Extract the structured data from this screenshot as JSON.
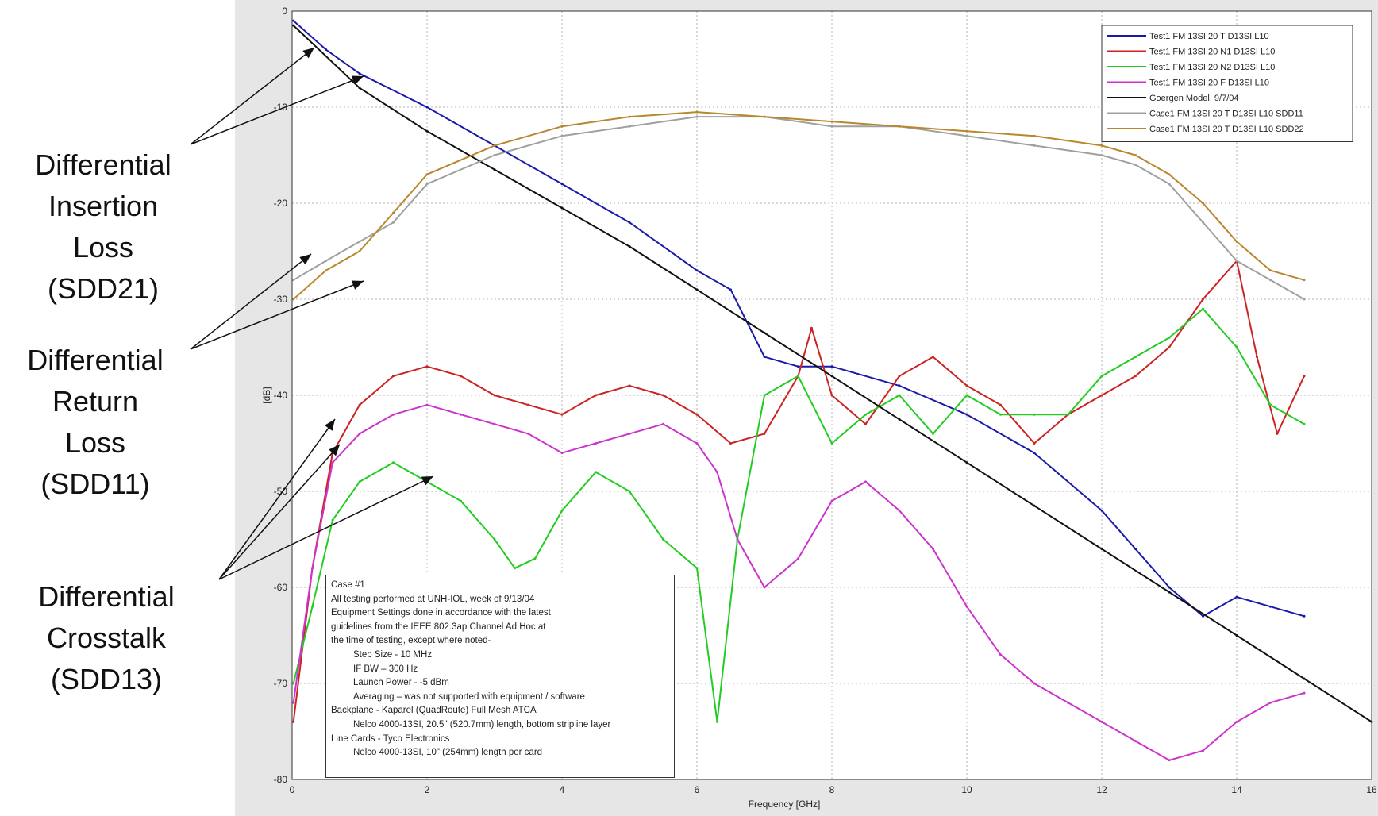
{
  "annotations": [
    {
      "label": "Differential\nInsertion\nLoss\n(SDD21)"
    },
    {
      "label": "Differential\nReturn\nLoss\n(SDD11)"
    },
    {
      "label": "Differential\nCrosstalk\n(SDD13)"
    }
  ],
  "notes": {
    "title": "Case #1",
    "lines": [
      {
        "text": "All testing performed at UNH-IOL, week of 9/13/04",
        "indent": false
      },
      {
        "text": "Equipment Settings done in accordance with the latest",
        "indent": false
      },
      {
        "text": "guidelines from the IEEE 802.3ap Channel Ad Hoc at",
        "indent": false
      },
      {
        "text": "the time of testing, except where noted-",
        "indent": false
      },
      {
        "text": "Step Size - 10 MHz",
        "indent": true
      },
      {
        "text": "IF BW – 300 Hz",
        "indent": true
      },
      {
        "text": "Launch Power - -5 dBm",
        "indent": true
      },
      {
        "text": "Averaging – was not supported with equipment / software",
        "indent": true
      },
      {
        "text": "Backplane - Kaparel (QuadRoute) Full Mesh ATCA",
        "indent": false
      },
      {
        "text": "Nelco 4000-13SI, 20.5\" (520.7mm) length, bottom stripline layer",
        "indent": true
      },
      {
        "text": "Line Cards - Tyco Electronics",
        "indent": false
      },
      {
        "text": "Nelco 4000-13SI, 10\" (254mm) length per card",
        "indent": true
      }
    ]
  },
  "chart_data": {
    "type": "line",
    "xlabel": "Frequency [GHz]",
    "ylabel": "[dB]",
    "xlim": [
      0,
      16
    ],
    "ylim": [
      -80,
      0
    ],
    "x_ticks": [
      0,
      2,
      4,
      6,
      8,
      10,
      12,
      14,
      16
    ],
    "x_tick_labels": [
      "0",
      "2",
      "4",
      "6",
      "8",
      "10",
      "12",
      "14",
      "16"
    ],
    "y_ticks": [
      0,
      -10,
      -20,
      -30,
      -40,
      -50,
      -60,
      -70,
      -80
    ],
    "y_tick_labels": [
      "0",
      "-10",
      "-20",
      "-30",
      "-40",
      "-50",
      "-60",
      "-70",
      "-80"
    ],
    "grid": true,
    "legend_position": "top-right",
    "series": [
      {
        "name": "Test1 FM 13SI 20 T D13SI L10",
        "color": "#1a1aaa",
        "x": [
          0.02,
          0.5,
          1,
          2,
          3,
          4,
          5,
          6,
          6.5,
          7,
          7.5,
          8,
          9,
          10,
          11,
          12,
          12.5,
          13,
          13.5,
          14,
          14.5,
          15
        ],
        "y": [
          -1,
          -4,
          -6.5,
          -10,
          -14,
          -18,
          -22,
          -27,
          -29,
          -36,
          -37,
          -37,
          -39,
          -42,
          -46,
          -52,
          -56,
          -60,
          -63,
          -61,
          -62,
          -63
        ]
      },
      {
        "name": "Test1 FM 13SI 20 N1 D13SI L10",
        "color": "#cc2222",
        "x": [
          0.02,
          0.3,
          0.6,
          1,
          1.5,
          2,
          2.5,
          3,
          3.5,
          4,
          4.5,
          5,
          5.5,
          6,
          6.5,
          7,
          7.5,
          7.7,
          8,
          8.5,
          9,
          9.5,
          10,
          10.5,
          11,
          11.5,
          12,
          12.5,
          13,
          13.5,
          14,
          14.3,
          14.6,
          15
        ],
        "y": [
          -74,
          -58,
          -46,
          -41,
          -38,
          -37,
          -38,
          -40,
          -41,
          -42,
          -40,
          -39,
          -40,
          -42,
          -45,
          -44,
          -38,
          -33,
          -40,
          -43,
          -38,
          -36,
          -39,
          -41,
          -45,
          -42,
          -40,
          -38,
          -35,
          -30,
          -26,
          -36,
          -44,
          -38
        ]
      },
      {
        "name": "Test1 FM 13SI 20 N2 D13SI L10",
        "color": "#22cc22",
        "x": [
          0.02,
          0.3,
          0.6,
          1,
          1.5,
          2,
          2.5,
          3,
          3.3,
          3.6,
          4,
          4.5,
          5,
          5.5,
          6,
          6.3,
          6.6,
          7,
          7.5,
          8,
          8.5,
          9,
          9.5,
          10,
          10.5,
          11,
          11.5,
          12,
          12.5,
          13,
          13.5,
          14,
          14.5,
          15
        ],
        "y": [
          -70,
          -62,
          -53,
          -49,
          -47,
          -49,
          -51,
          -55,
          -58,
          -57,
          -52,
          -48,
          -50,
          -55,
          -58,
          -74,
          -55,
          -40,
          -38,
          -45,
          -42,
          -40,
          -44,
          -40,
          -42,
          -42,
          -42,
          -38,
          -36,
          -34,
          -31,
          -35,
          -41,
          -43
        ]
      },
      {
        "name": "Test1 FM 13SI 20 F D13SI L10",
        "color": "#cc33cc",
        "x": [
          0.02,
          0.3,
          0.6,
          1,
          1.5,
          2,
          2.5,
          3,
          3.5,
          4,
          4.5,
          5,
          5.5,
          6,
          6.3,
          6.6,
          7,
          7.5,
          8,
          8.5,
          9,
          9.5,
          10,
          10.5,
          11,
          11.5,
          12,
          12.5,
          13,
          13.5,
          14,
          14.5,
          15
        ],
        "y": [
          -72,
          -58,
          -47,
          -44,
          -42,
          -41,
          -42,
          -43,
          -44,
          -46,
          -45,
          -44,
          -43,
          -45,
          -48,
          -55,
          -60,
          -57,
          -51,
          -49,
          -52,
          -56,
          -62,
          -67,
          -70,
          -72,
          -74,
          -76,
          -78,
          -77,
          -74,
          -72,
          -71
        ]
      },
      {
        "name": "Goergen Model, 9/7/04",
        "color": "#111111",
        "x": [
          0.02,
          1,
          2,
          3,
          4,
          5,
          6,
          7,
          8,
          9,
          10,
          11,
          12,
          13,
          14,
          15,
          16
        ],
        "y": [
          -1.5,
          -8,
          -12.5,
          -16.5,
          -20.5,
          -24.5,
          -29,
          -33.5,
          -38,
          -42.5,
          -47,
          -51.5,
          -56,
          -60.5,
          -65,
          -69.5,
          -74
        ]
      },
      {
        "name": "Case1 FM 13SI 20 T D13SI L10 SDD11",
        "color": "#a0a0a0",
        "x": [
          0.02,
          0.5,
          1,
          1.5,
          2,
          3,
          4,
          5,
          6,
          7,
          8,
          9,
          10,
          11,
          12,
          12.5,
          13,
          13.5,
          14,
          14.5,
          15
        ],
        "y": [
          -28,
          -26,
          -24,
          -22,
          -18,
          -15,
          -13,
          -12,
          -11,
          -11,
          -12,
          -12,
          -13,
          -14,
          -15,
          -16,
          -18,
          -22,
          -26,
          -28,
          -30
        ]
      },
      {
        "name": "Case1 FM 13SI 20 T D13SI L10 SDD22",
        "color": "#b8872e",
        "x": [
          0.02,
          0.5,
          1,
          1.5,
          2,
          3,
          4,
          5,
          6,
          7,
          8,
          9,
          10,
          11,
          12,
          12.5,
          13,
          13.5,
          14,
          14.5,
          15
        ],
        "y": [
          -30,
          -27,
          -25,
          -21,
          -17,
          -14,
          -12,
          -11,
          -10.5,
          -11,
          -11.5,
          -12,
          -12.5,
          -13,
          -14,
          -15,
          -17,
          -20,
          -24,
          -27,
          -28
        ]
      }
    ]
  }
}
